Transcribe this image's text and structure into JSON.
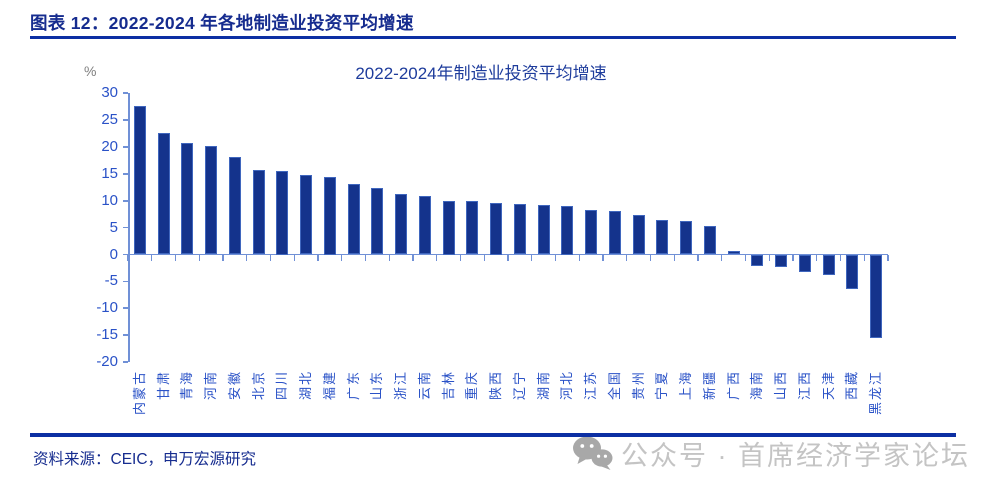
{
  "header": {
    "title": "图表 12：2022-2024 年各地制造业投资平均增速"
  },
  "source": {
    "text": "资料来源：CEIC，申万宏源研究"
  },
  "watermark": {
    "text": "公众号 · 首席经济学家论坛"
  },
  "colors": {
    "header": "#162C8F",
    "rule": "#0C2FA3",
    "title": "#1E3C9C",
    "tick": "#2A52C7",
    "axis": "#7090D6",
    "bar": "#14338C",
    "barBorder": "#3F66BE",
    "unit": "#7F7F7F",
    "source": "#162C8F",
    "watermark": "#C4C4C4",
    "watermarkIcon": "#A8A8A8"
  },
  "chart_data": {
    "type": "bar",
    "title": "2022-2024年制造业投资平均增速",
    "unit": "%",
    "xlabel": "",
    "ylabel": "%",
    "ylim": [
      -20,
      30
    ],
    "ytick_step": 5,
    "grid": false,
    "legend": "none",
    "categories": [
      "内蒙古",
      "甘肃",
      "青海",
      "河南",
      "安徽",
      "北京",
      "四川",
      "湖北",
      "福建",
      "广东",
      "山东",
      "浙江",
      "云南",
      "吉林",
      "重庆",
      "陕西",
      "辽宁",
      "湖南",
      "河北",
      "江苏",
      "全国",
      "贵州",
      "宁夏",
      "上海",
      "新疆",
      "广西",
      "海南",
      "山西",
      "江西",
      "天津",
      "西藏",
      "黑龙江"
    ],
    "values": [
      27.6,
      22.6,
      20.7,
      20.1,
      18.1,
      15.8,
      15.5,
      14.8,
      14.5,
      13.1,
      12.3,
      11.2,
      10.9,
      10.0,
      9.9,
      9.5,
      9.4,
      9.2,
      9.0,
      8.3,
      8.1,
      7.3,
      6.4,
      6.2,
      5.3,
      0.7,
      -1.9,
      -2.1,
      -3.2,
      -3.6,
      -6.2,
      -15.3
    ]
  }
}
